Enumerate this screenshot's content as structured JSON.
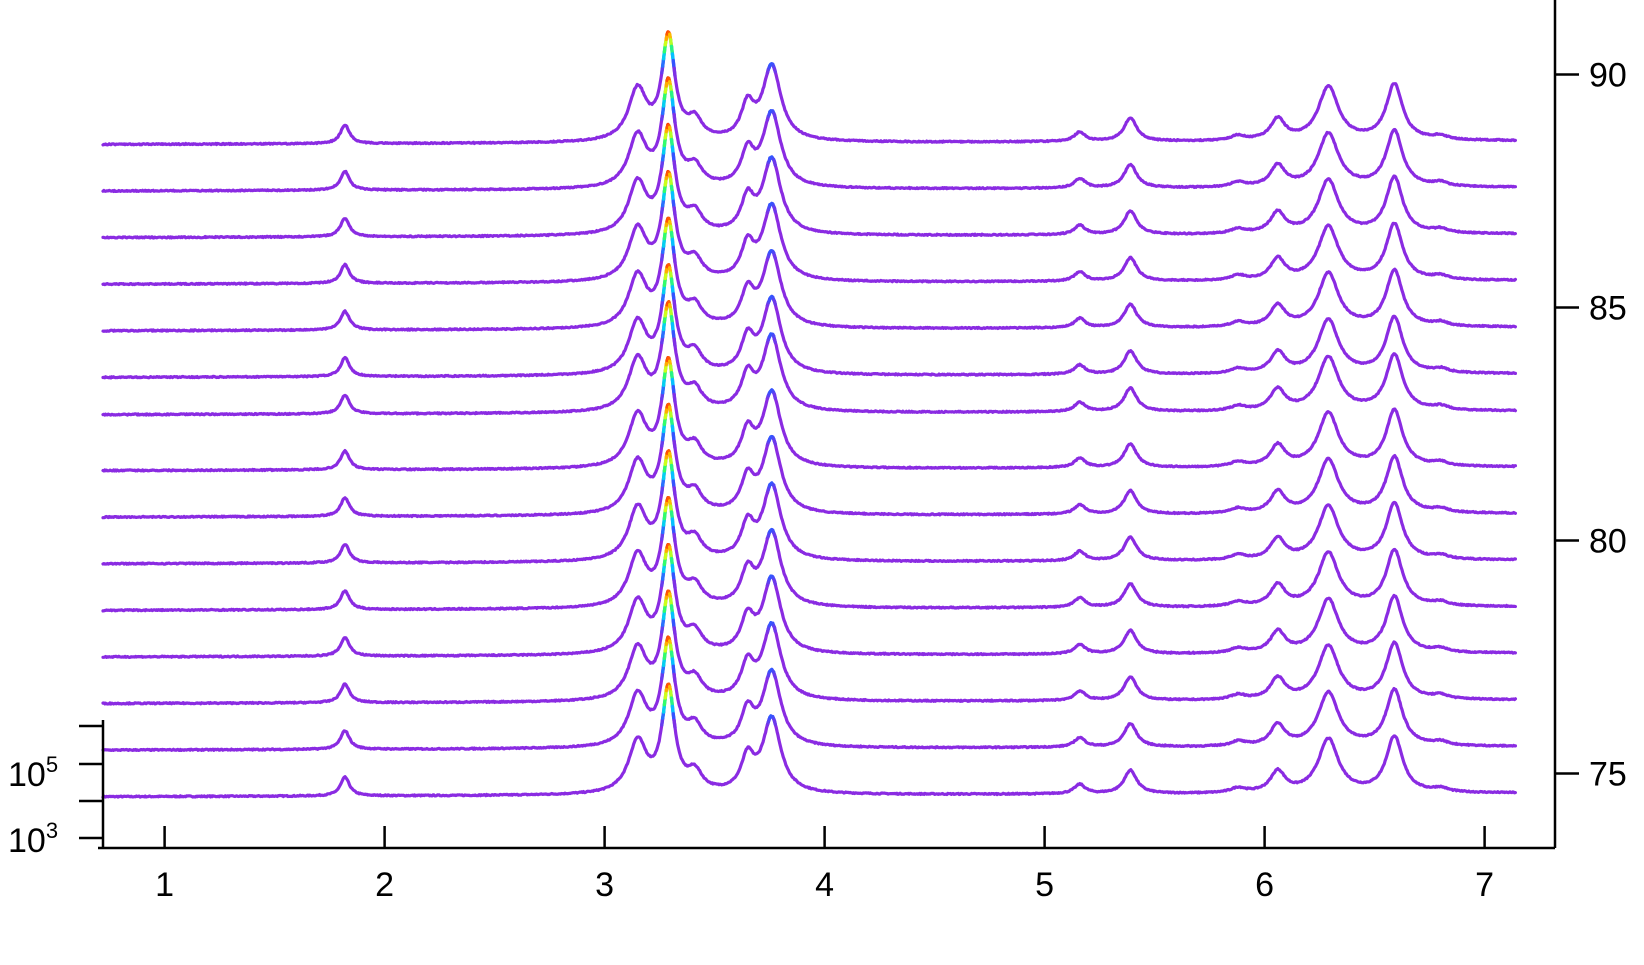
{
  "chart_data": {
    "type": "line",
    "title": "",
    "xlabel": "",
    "ylabel": "",
    "xlim": [
      0.72,
      7.32
    ],
    "x_ticks": [
      "1",
      "2",
      "3",
      "4",
      "5",
      "6",
      "7"
    ],
    "right_axis": {
      "ylim": [
        73.4,
        91.6
      ],
      "ticks": [
        "75",
        "80",
        "85",
        "90"
      ]
    },
    "left_axis": {
      "scale": "log",
      "tick_labels": [
        {
          "base": "10",
          "exponent": "5"
        },
        {
          "base": "10",
          "exponent": "3"
        }
      ]
    },
    "waterfall": {
      "trace_count": 15,
      "x_range": [
        0.72,
        7.14
      ],
      "baseline_offsets": [
        74.5,
        75.5,
        76.5,
        77.5,
        78.5,
        79.5,
        80.5,
        81.5,
        82.7,
        83.5,
        84.5,
        85.5,
        86.5,
        87.5,
        88.5
      ],
      "slope_per_unit_x": 0.012,
      "peaks": [
        {
          "x": 1.82,
          "height": 0.4,
          "width": 0.025
        },
        {
          "x": 3.15,
          "height": 1.1,
          "width": 0.05
        },
        {
          "x": 3.29,
          "height": 2.2,
          "width": 0.035
        },
        {
          "x": 3.41,
          "height": 0.4,
          "width": 0.04
        },
        {
          "x": 3.65,
          "height": 0.7,
          "width": 0.035
        },
        {
          "x": 3.76,
          "height": 1.6,
          "width": 0.05
        },
        {
          "x": 5.16,
          "height": 0.2,
          "width": 0.03
        },
        {
          "x": 5.39,
          "height": 0.5,
          "width": 0.035
        },
        {
          "x": 5.88,
          "height": 0.1,
          "width": 0.04
        },
        {
          "x": 6.06,
          "height": 0.45,
          "width": 0.04
        },
        {
          "x": 6.29,
          "height": 1.15,
          "width": 0.055
        },
        {
          "x": 6.59,
          "height": 1.2,
          "width": 0.045
        },
        {
          "x": 6.8,
          "height": 0.08,
          "width": 0.04
        }
      ],
      "color_scale": [
        "#8a2be2",
        "#3355ff",
        "#00ccff",
        "#33ff66",
        "#ffff00",
        "#ff3300"
      ],
      "color_threshold": 1.5
    }
  }
}
